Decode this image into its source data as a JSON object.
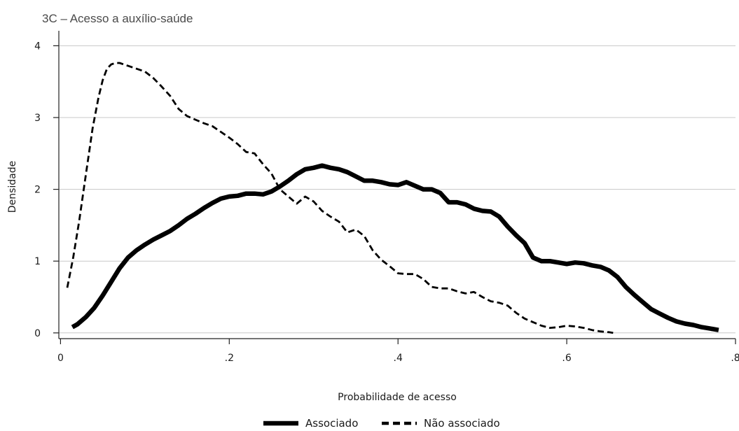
{
  "chart_data": {
    "type": "line",
    "title": "3C – Acesso a auxílio-saúde",
    "xlabel": "Probabilidade de acesso",
    "ylabel": "Densidade",
    "xlim": [
      -0.002,
      0.8
    ],
    "ylim": [
      -0.08,
      4.15
    ],
    "x_ticks": [
      0,
      0.2,
      0.4,
      0.6,
      0.8
    ],
    "x_tick_labels": [
      "0",
      ".2",
      ".4",
      ".6",
      ".8"
    ],
    "y_ticks": [
      0,
      1,
      2,
      3,
      4
    ],
    "y_tick_labels": [
      "0",
      "1",
      "2",
      "3",
      "4"
    ],
    "grid": "horizontal",
    "legend_position": "bottom",
    "series": [
      {
        "name": "Associado",
        "style": "solid-thick",
        "color": "#000000",
        "points": [
          [
            0.014,
            0.08
          ],
          [
            0.02,
            0.12
          ],
          [
            0.03,
            0.22
          ],
          [
            0.04,
            0.35
          ],
          [
            0.05,
            0.52
          ],
          [
            0.06,
            0.71
          ],
          [
            0.07,
            0.9
          ],
          [
            0.08,
            1.05
          ],
          [
            0.09,
            1.15
          ],
          [
            0.1,
            1.23
          ],
          [
            0.11,
            1.3
          ],
          [
            0.12,
            1.36
          ],
          [
            0.13,
            1.42
          ],
          [
            0.14,
            1.5
          ],
          [
            0.15,
            1.59
          ],
          [
            0.16,
            1.66
          ],
          [
            0.17,
            1.74
          ],
          [
            0.18,
            1.81
          ],
          [
            0.19,
            1.87
          ],
          [
            0.2,
            1.9
          ],
          [
            0.21,
            1.91
          ],
          [
            0.22,
            1.94
          ],
          [
            0.23,
            1.94
          ],
          [
            0.24,
            1.93
          ],
          [
            0.25,
            1.97
          ],
          [
            0.26,
            2.04
          ],
          [
            0.27,
            2.12
          ],
          [
            0.28,
            2.21
          ],
          [
            0.29,
            2.28
          ],
          [
            0.3,
            2.3
          ],
          [
            0.31,
            2.33
          ],
          [
            0.32,
            2.3
          ],
          [
            0.33,
            2.28
          ],
          [
            0.34,
            2.24
          ],
          [
            0.35,
            2.18
          ],
          [
            0.36,
            2.12
          ],
          [
            0.37,
            2.12
          ],
          [
            0.38,
            2.1
          ],
          [
            0.39,
            2.07
          ],
          [
            0.4,
            2.06
          ],
          [
            0.41,
            2.1
          ],
          [
            0.42,
            2.05
          ],
          [
            0.43,
            2.0
          ],
          [
            0.44,
            2.0
          ],
          [
            0.45,
            1.95
          ],
          [
            0.46,
            1.82
          ],
          [
            0.47,
            1.82
          ],
          [
            0.48,
            1.79
          ],
          [
            0.49,
            1.73
          ],
          [
            0.5,
            1.7
          ],
          [
            0.51,
            1.69
          ],
          [
            0.52,
            1.62
          ],
          [
            0.53,
            1.48
          ],
          [
            0.54,
            1.36
          ],
          [
            0.55,
            1.25
          ],
          [
            0.56,
            1.05
          ],
          [
            0.57,
            1.0
          ],
          [
            0.58,
            1.0
          ],
          [
            0.59,
            0.98
          ],
          [
            0.6,
            0.96
          ],
          [
            0.61,
            0.98
          ],
          [
            0.62,
            0.97
          ],
          [
            0.63,
            0.94
          ],
          [
            0.64,
            0.92
          ],
          [
            0.65,
            0.87
          ],
          [
            0.66,
            0.78
          ],
          [
            0.67,
            0.64
          ],
          [
            0.68,
            0.53
          ],
          [
            0.69,
            0.43
          ],
          [
            0.7,
            0.33
          ],
          [
            0.71,
            0.27
          ],
          [
            0.72,
            0.21
          ],
          [
            0.73,
            0.16
          ],
          [
            0.74,
            0.13
          ],
          [
            0.75,
            0.11
          ],
          [
            0.76,
            0.08
          ],
          [
            0.77,
            0.06
          ],
          [
            0.78,
            0.04
          ]
        ]
      },
      {
        "name": "Não associado",
        "style": "dashed",
        "color": "#000000",
        "points": [
          [
            0.008,
            0.63
          ],
          [
            0.015,
            1.05
          ],
          [
            0.022,
            1.55
          ],
          [
            0.03,
            2.2
          ],
          [
            0.038,
            2.85
          ],
          [
            0.045,
            3.28
          ],
          [
            0.05,
            3.52
          ],
          [
            0.055,
            3.68
          ],
          [
            0.06,
            3.74
          ],
          [
            0.065,
            3.76
          ],
          [
            0.07,
            3.76
          ],
          [
            0.08,
            3.72
          ],
          [
            0.09,
            3.68
          ],
          [
            0.1,
            3.64
          ],
          [
            0.11,
            3.55
          ],
          [
            0.12,
            3.43
          ],
          [
            0.13,
            3.3
          ],
          [
            0.14,
            3.12
          ],
          [
            0.15,
            3.02
          ],
          [
            0.16,
            2.97
          ],
          [
            0.17,
            2.92
          ],
          [
            0.18,
            2.88
          ],
          [
            0.19,
            2.8
          ],
          [
            0.2,
            2.72
          ],
          [
            0.21,
            2.63
          ],
          [
            0.22,
            2.52
          ],
          [
            0.23,
            2.5
          ],
          [
            0.24,
            2.35
          ],
          [
            0.25,
            2.22
          ],
          [
            0.26,
            2.0
          ],
          [
            0.27,
            1.9
          ],
          [
            0.28,
            1.8
          ],
          [
            0.29,
            1.9
          ],
          [
            0.3,
            1.83
          ],
          [
            0.31,
            1.7
          ],
          [
            0.32,
            1.62
          ],
          [
            0.33,
            1.55
          ],
          [
            0.34,
            1.4
          ],
          [
            0.35,
            1.44
          ],
          [
            0.36,
            1.35
          ],
          [
            0.37,
            1.15
          ],
          [
            0.38,
            1.02
          ],
          [
            0.39,
            0.93
          ],
          [
            0.4,
            0.83
          ],
          [
            0.41,
            0.82
          ],
          [
            0.42,
            0.82
          ],
          [
            0.43,
            0.75
          ],
          [
            0.44,
            0.64
          ],
          [
            0.45,
            0.62
          ],
          [
            0.46,
            0.62
          ],
          [
            0.47,
            0.58
          ],
          [
            0.48,
            0.55
          ],
          [
            0.49,
            0.57
          ],
          [
            0.5,
            0.5
          ],
          [
            0.51,
            0.44
          ],
          [
            0.52,
            0.42
          ],
          [
            0.53,
            0.38
          ],
          [
            0.54,
            0.28
          ],
          [
            0.55,
            0.2
          ],
          [
            0.56,
            0.15
          ],
          [
            0.57,
            0.1
          ],
          [
            0.58,
            0.07
          ],
          [
            0.59,
            0.08
          ],
          [
            0.6,
            0.1
          ],
          [
            0.61,
            0.09
          ],
          [
            0.62,
            0.07
          ],
          [
            0.63,
            0.04
          ],
          [
            0.64,
            0.02
          ],
          [
            0.65,
            0.01
          ],
          [
            0.655,
            0.0
          ]
        ]
      }
    ]
  }
}
